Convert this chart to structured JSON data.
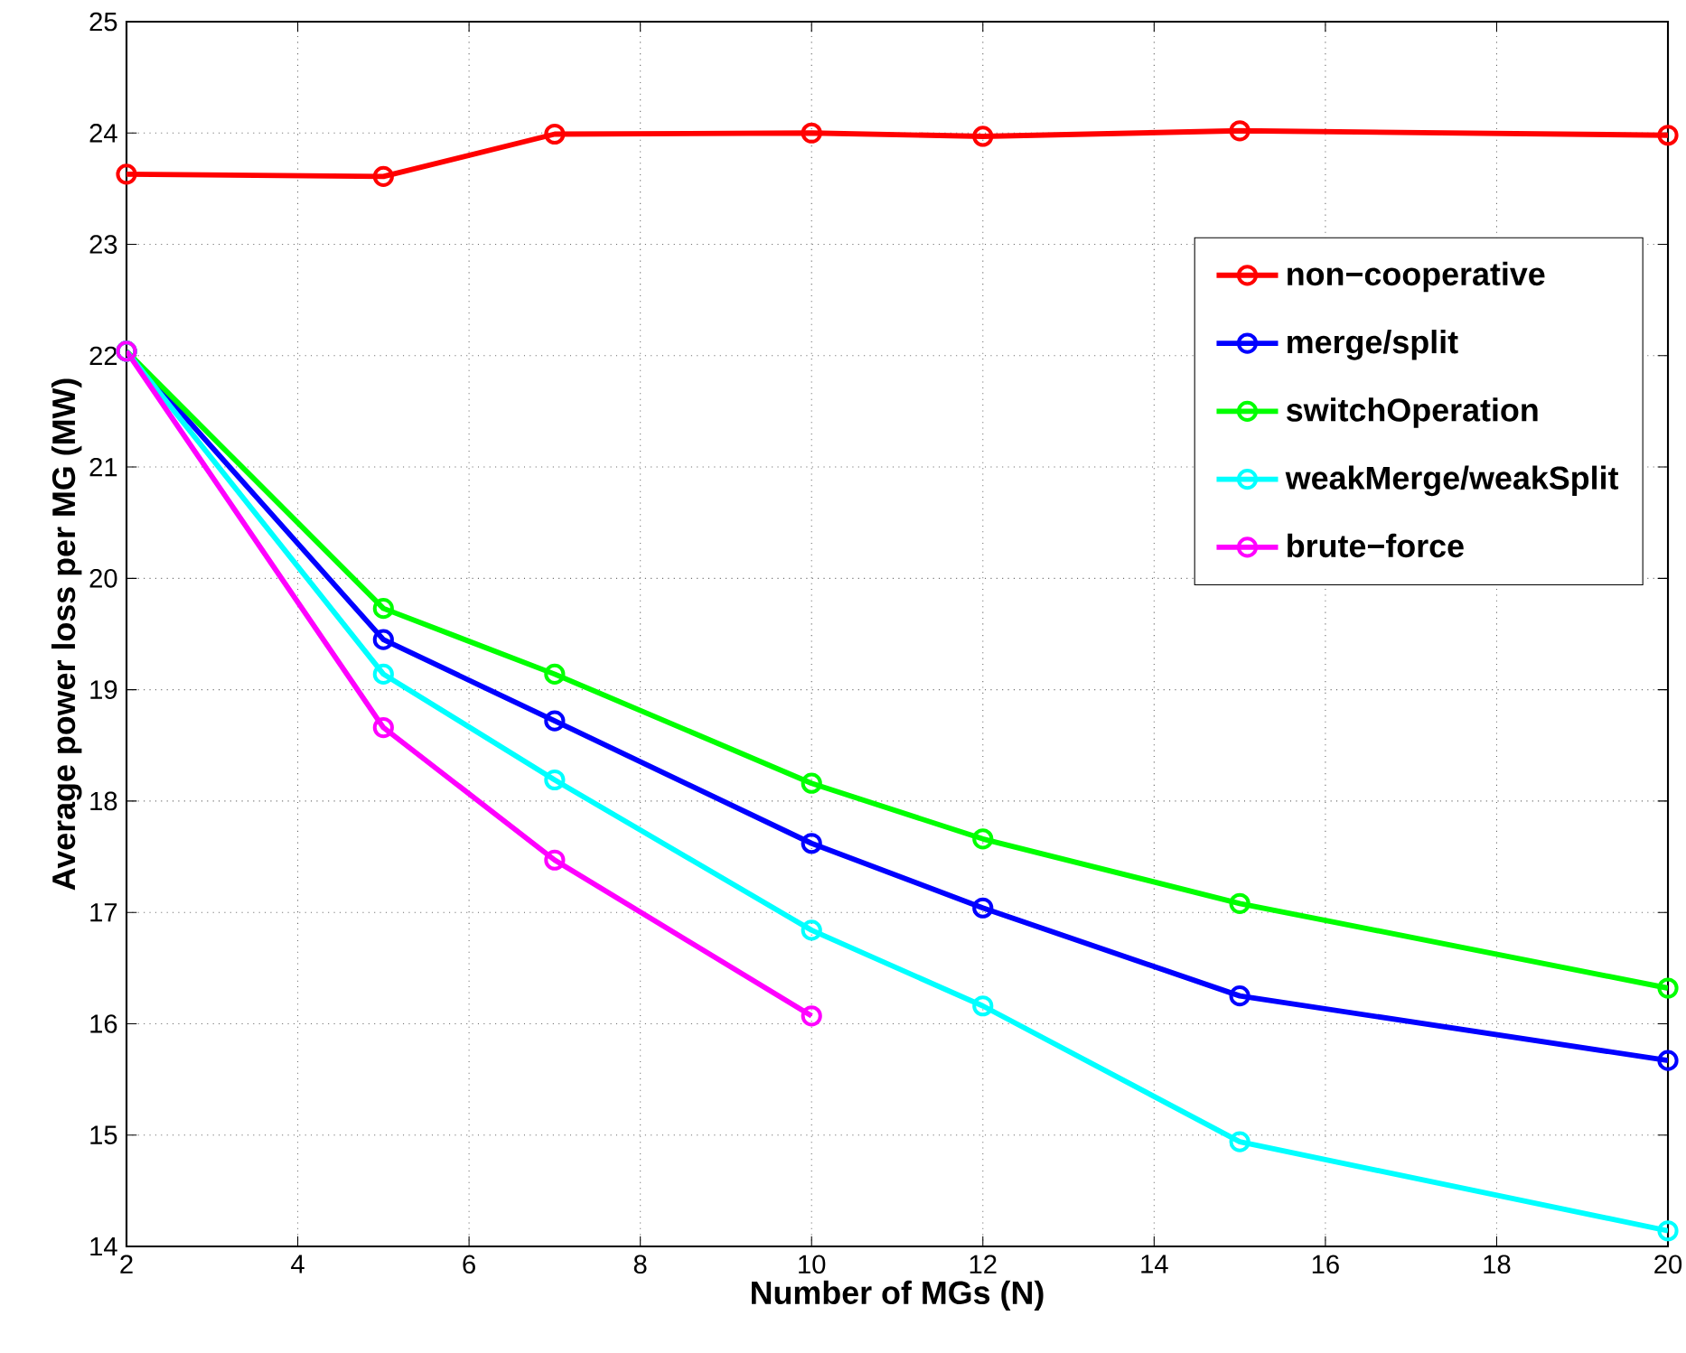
{
  "chart_data": {
    "type": "line",
    "xlabel": "Number of MGs (N)",
    "ylabel": "Average power loss per MG (MW)",
    "xlim": [
      2,
      20
    ],
    "ylim": [
      14,
      25
    ],
    "xticks": [
      2,
      4,
      6,
      8,
      10,
      12,
      14,
      16,
      18,
      20
    ],
    "yticks": [
      14,
      15,
      16,
      17,
      18,
      19,
      20,
      21,
      22,
      23,
      24,
      25
    ],
    "grid": true,
    "legend": "top right",
    "marker": "circle",
    "line_style": "solid",
    "series": [
      {
        "name": "non−cooperative",
        "color": "#ff0000",
        "x": [
          2,
          5,
          7,
          10,
          12,
          15,
          20
        ],
        "values": [
          23.63,
          23.61,
          23.99,
          24.0,
          23.97,
          24.02,
          23.98
        ]
      },
      {
        "name": "merge/split",
        "color": "#0000ff",
        "x": [
          2,
          5,
          7,
          10,
          12,
          15,
          20
        ],
        "values": [
          22.04,
          19.45,
          18.72,
          17.62,
          17.04,
          16.25,
          15.67
        ]
      },
      {
        "name": "switchOperation",
        "color": "#00ff00",
        "x": [
          2,
          5,
          7,
          10,
          12,
          15,
          20
        ],
        "values": [
          22.04,
          19.73,
          19.14,
          18.16,
          17.66,
          17.08,
          16.32
        ]
      },
      {
        "name": "weakMerge/weakSplit",
        "color": "#00ffff",
        "x": [
          2,
          5,
          7,
          10,
          12,
          15,
          20
        ],
        "values": [
          22.04,
          19.14,
          18.19,
          16.84,
          16.16,
          14.94,
          14.14
        ]
      },
      {
        "name": "brute−force",
        "color": "#ff00ff",
        "x": [
          2,
          5,
          7,
          10
        ],
        "values": [
          22.04,
          18.66,
          17.47,
          16.07
        ]
      }
    ]
  }
}
